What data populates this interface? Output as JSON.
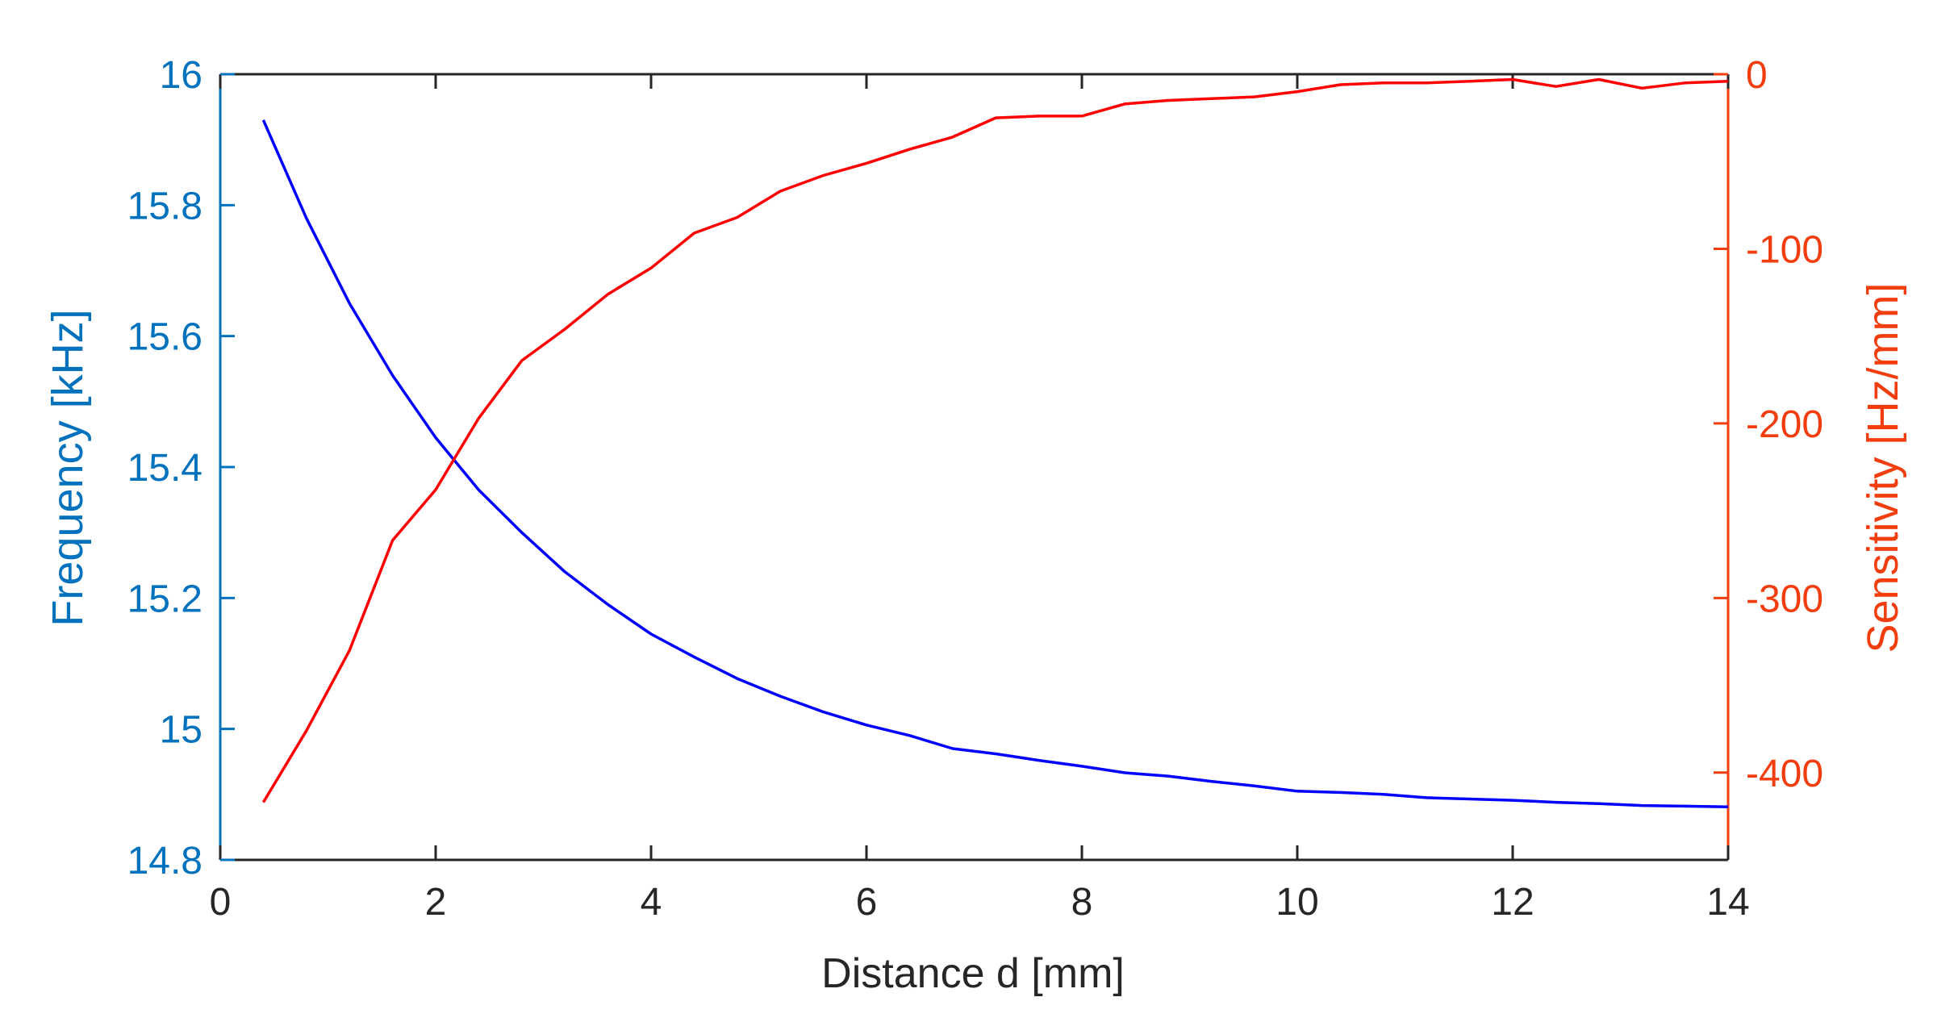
{
  "colors": {
    "left_axis": "#0072BD",
    "right_axis": "#F23E0E",
    "frequency_line": "#0000FF",
    "sensitivity_line": "#FF0000",
    "black": "#262626"
  },
  "chart_data": {
    "type": "line",
    "title": "",
    "xlabel": "Distance d [mm]",
    "ylabel_left": "Frequency [kHz]",
    "ylabel_right": "Sensitivity [Hz/mm]",
    "xlim": [
      0,
      14
    ],
    "ylim_left": [
      14.8,
      16
    ],
    "ylim_right": [
      -450,
      0
    ],
    "x_ticks": [
      0,
      2,
      4,
      6,
      8,
      10,
      12,
      14
    ],
    "y_ticks_left": [
      14.8,
      15,
      15.2,
      15.4,
      15.6,
      15.8,
      16
    ],
    "y_ticks_right": [
      -400,
      -300,
      -200,
      -100,
      0
    ],
    "grid": false,
    "series": [
      {
        "axis": "left",
        "color": "#0000FF",
        "x": [
          0.4,
          0.8,
          1.2,
          1.6,
          2.0,
          2.4,
          2.8,
          3.2,
          3.6,
          4.0,
          4.4,
          4.8,
          5.2,
          5.6,
          6.0,
          6.4,
          6.8,
          7.2,
          7.6,
          8.0,
          8.4,
          8.8,
          9.2,
          9.6,
          10.0,
          10.4,
          10.8,
          11.2,
          11.6,
          12.0,
          12.4,
          12.8,
          13.2,
          13.6,
          14.0
        ],
        "values": [
          15.93,
          15.78,
          15.65,
          15.54,
          15.445,
          15.365,
          15.3,
          15.24,
          15.19,
          15.145,
          15.11,
          15.077,
          15.05,
          15.026,
          15.006,
          14.99,
          14.97,
          14.962,
          14.952,
          14.943,
          14.933,
          14.928,
          14.92,
          14.913,
          14.905,
          14.903,
          14.9,
          14.895,
          14.893,
          14.891,
          14.888,
          14.886,
          14.883,
          14.882,
          14.881
        ]
      },
      {
        "axis": "right",
        "color": "#FF0000",
        "x": [
          0.4,
          0.8,
          1.2,
          1.6,
          2.0,
          2.4,
          2.8,
          3.2,
          3.6,
          4.0,
          4.4,
          4.8,
          5.2,
          5.6,
          6.0,
          6.4,
          6.8,
          7.2,
          7.6,
          8.0,
          8.4,
          8.8,
          9.2,
          9.6,
          10.0,
          10.4,
          10.8,
          11.2,
          11.6,
          12.0,
          12.4,
          12.8,
          13.2,
          13.6,
          14.0
        ],
        "values": [
          -417,
          -376,
          -330,
          -267,
          -238,
          -197,
          -164,
          -146,
          -126,
          -111,
          -91,
          -82,
          -67,
          -58,
          -51,
          -43,
          -36,
          -25,
          -24,
          -24,
          -17,
          -15,
          -14,
          -13,
          -10,
          -6,
          -5,
          -5,
          -4,
          -3,
          -7,
          -3,
          -8,
          -5,
          -4
        ]
      }
    ]
  }
}
